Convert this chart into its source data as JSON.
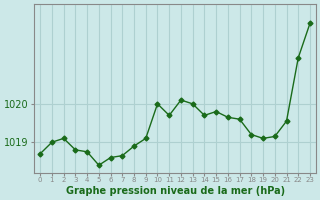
{
  "x": [
    0,
    1,
    2,
    3,
    4,
    5,
    6,
    7,
    8,
    9,
    10,
    11,
    12,
    13,
    14,
    15,
    16,
    17,
    18,
    19,
    20,
    21,
    22,
    23
  ],
  "y": [
    1018.7,
    1019.0,
    1019.1,
    1018.8,
    1018.75,
    1018.4,
    1018.6,
    1018.65,
    1018.9,
    1019.1,
    1020.0,
    1019.7,
    1020.1,
    1020.0,
    1019.7,
    1019.8,
    1019.65,
    1019.6,
    1019.2,
    1019.1,
    1019.15,
    1019.55,
    1021.2,
    1022.1
  ],
  "xlabel": "Graphe pression niveau de la mer (hPa)",
  "yticks": [
    1019,
    1020
  ],
  "ylim": [
    1018.2,
    1022.6
  ],
  "xlim": [
    -0.5,
    23.5
  ],
  "line_color": "#1a6b1a",
  "marker": "D",
  "marker_size": 2.5,
  "bg_color": "#cce8e8",
  "grid_color": "#aed0d0",
  "axis_label_color": "#1a6b1a",
  "tick_label_color": "#1a6b1a",
  "border_color": "#888888"
}
